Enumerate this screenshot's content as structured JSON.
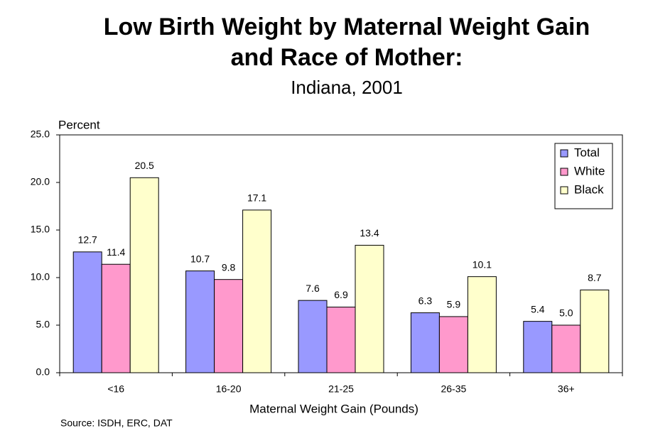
{
  "chart_data": {
    "type": "bar",
    "title": "Low Birth Weight by Maternal Weight Gain",
    "title_line2": "and Race of Mother:",
    "subtitle": "Indiana, 2001",
    "y_label": "Percent",
    "x_label": "Maternal Weight Gain (Pounds)",
    "source": "Source:  ISDH, ERC, DAT",
    "categories": [
      "<16",
      "16-20",
      "21-25",
      "26-35",
      "36+"
    ],
    "series": [
      {
        "name": "Total",
        "color": "#9999ff",
        "values": [
          12.7,
          10.7,
          7.6,
          6.3,
          5.4
        ]
      },
      {
        "name": "White",
        "color": "#ff99cc",
        "values": [
          11.4,
          9.8,
          6.9,
          5.9,
          5
        ],
        "value_labels": [
          "11.4",
          "9.8",
          "6.9",
          "5.9",
          "5.0"
        ]
      },
      {
        "name": "Black",
        "color": "#ffffcc",
        "values": [
          20.5,
          17.1,
          13.4,
          10.1,
          8.7
        ]
      }
    ],
    "ylim": [
      0,
      25
    ],
    "yticks": [
      {
        "value": 0,
        "label": "0.0"
      },
      {
        "value": 5,
        "label": "5.0"
      },
      {
        "value": 10,
        "label": "10.0"
      },
      {
        "value": 15,
        "label": "15.0"
      },
      {
        "value": 20,
        "label": "20.0"
      },
      {
        "value": 25,
        "label": "25.0"
      }
    ],
    "grid": false,
    "legend": "upper right"
  }
}
